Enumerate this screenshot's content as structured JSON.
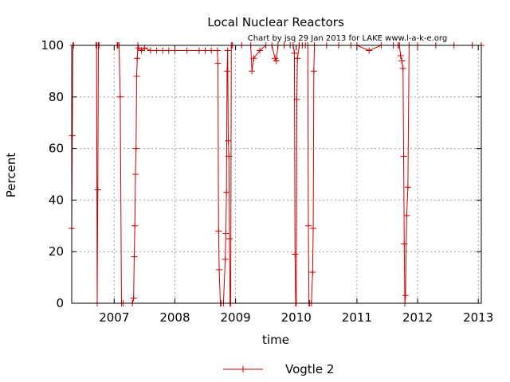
{
  "chart_data": {
    "type": "line",
    "title": "Local Nuclear Reactors",
    "annotation": "Chart by jsq 29 Jan 2013 for LAKE www.l-a-k-e.org",
    "xlabel": "time",
    "ylabel": "Percent",
    "xlim": [
      2006.3,
      2013.05
    ],
    "ylim": [
      0,
      100
    ],
    "x_ticks": [
      2007,
      2008,
      2009,
      2010,
      2011,
      2012,
      2013
    ],
    "x_tick_labels": [
      "2007",
      "2008",
      "2009",
      "2010",
      "2011",
      "2012",
      "2013"
    ],
    "y_ticks": [
      0,
      20,
      40,
      60,
      80,
      100
    ],
    "y_tick_labels": [
      "0",
      "20",
      "40",
      "60",
      "80",
      "100"
    ],
    "grid": true,
    "legend_position": "bottom-center",
    "series": [
      {
        "name": "Vogtle 2",
        "color": "#cc0000",
        "x": [
          2006.3,
          2006.31,
          2006.32,
          2006.33,
          2006.7,
          2006.71,
          2006.72,
          2006.73,
          2006.74,
          2006.75,
          2007.05,
          2007.06,
          2007.08,
          2007.1,
          2007.12,
          2007.15,
          2007.3,
          2007.32,
          2007.33,
          2007.34,
          2007.35,
          2007.36,
          2007.37,
          2007.38,
          2007.39,
          2007.4,
          2007.45,
          2007.5,
          2007.6,
          2007.7,
          2007.8,
          2007.9,
          2008.0,
          2008.2,
          2008.4,
          2008.5,
          2008.6,
          2008.7,
          2008.71,
          2008.72,
          2008.73,
          2008.75,
          2008.76,
          2008.8,
          2008.83,
          2008.84,
          2008.85,
          2008.86,
          2008.87,
          2008.88,
          2008.89,
          2008.9,
          2008.91,
          2008.92,
          2008.93,
          2008.95,
          2009.1,
          2009.25,
          2009.27,
          2009.3,
          2009.4,
          2009.5,
          2009.6,
          2009.65,
          2009.67,
          2009.7,
          2009.8,
          2009.9,
          2009.95,
          2009.97,
          2009.98,
          2009.99,
          2010.0,
          2010.01,
          2010.02,
          2010.05,
          2010.1,
          2010.15,
          2010.19,
          2010.2,
          2010.21,
          2010.22,
          2010.25,
          2010.27,
          2010.28,
          2010.29,
          2010.3,
          2010.5,
          2010.7,
          2010.9,
          2011.0,
          2011.2,
          2011.4,
          2011.6,
          2011.68,
          2011.7,
          2011.72,
          2011.74,
          2011.76,
          2011.77,
          2011.78,
          2011.79,
          2011.8,
          2011.82,
          2011.84,
          2011.86,
          2012.0,
          2012.3,
          2012.6,
          2012.9,
          2013.05
        ],
        "values": [
          29,
          65,
          100,
          100,
          100,
          100,
          0,
          44,
          100,
          100,
          100,
          100,
          100,
          80,
          0,
          0,
          0,
          2,
          18,
          30,
          50,
          60,
          88,
          95,
          100,
          99,
          98,
          99,
          98,
          98,
          98,
          98,
          98,
          98,
          98,
          98,
          98,
          98,
          93,
          28,
          13,
          0,
          0,
          0,
          17,
          27,
          43,
          90,
          98,
          63,
          57,
          25,
          0,
          0,
          100,
          100,
          100,
          100,
          90,
          95,
          98,
          100,
          100,
          95,
          94,
          100,
          100,
          100,
          100,
          97,
          19,
          0,
          0,
          79,
          95,
          100,
          100,
          100,
          100,
          30,
          0,
          0,
          0,
          12,
          29,
          90,
          100,
          100,
          100,
          100,
          100,
          98,
          100,
          100,
          100,
          100,
          96,
          94,
          91,
          57,
          23,
          0,
          3,
          34,
          45,
          100,
          100,
          100,
          100,
          100,
          100
        ]
      }
    ]
  }
}
